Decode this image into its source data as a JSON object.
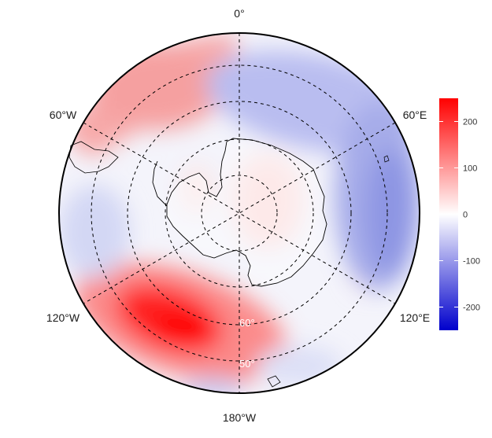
{
  "map": {
    "projection": "south-polar-stereographic",
    "longitude_labels": {
      "top": "0°",
      "upper_left": "60°W",
      "upper_right": "60°E",
      "lower_left": "120°W",
      "lower_right": "120°E",
      "bottom": "180°W"
    },
    "latitude_labels": [
      "60°",
      "50°"
    ],
    "graticule_style": "dashed"
  },
  "colorbar": {
    "ticks": [
      "200",
      "100",
      "0",
      "-100",
      "-200"
    ],
    "tick_values": [
      200,
      100,
      0,
      -100,
      -200
    ],
    "range": [
      -250,
      250
    ],
    "color_low": "#0000cc",
    "color_mid": "#ffffff",
    "color_high": "#ff0000"
  }
}
